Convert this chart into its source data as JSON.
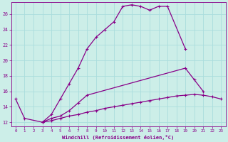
{
  "xlabel": "Windchill (Refroidissement éolien,°C)",
  "bg_color": "#cceee8",
  "line_color": "#880088",
  "grid_color": "#aadddd",
  "xlim": [
    -0.5,
    23.5
  ],
  "ylim": [
    11.5,
    27.5
  ],
  "xticks": [
    0,
    1,
    2,
    3,
    4,
    5,
    6,
    7,
    8,
    9,
    10,
    11,
    12,
    13,
    14,
    15,
    16,
    17,
    18,
    19,
    20,
    21,
    22,
    23
  ],
  "yticks": [
    12,
    14,
    16,
    18,
    20,
    22,
    24,
    26
  ],
  "series": [
    {
      "x": [
        0,
        1,
        3,
        4,
        5,
        6,
        7,
        8,
        9,
        10,
        11,
        12,
        13,
        14,
        15,
        16,
        17,
        19
      ],
      "y": [
        15.0,
        12.5,
        12.0,
        13.0,
        15.0,
        17.0,
        19.0,
        21.5,
        23.0,
        24.0,
        25.0,
        27.0,
        27.2,
        27.0,
        26.5,
        27.0,
        27.0,
        21.5
      ]
    },
    {
      "x": [
        3,
        4,
        5,
        6,
        7,
        8,
        19,
        20,
        21
      ],
      "y": [
        12.0,
        12.5,
        12.8,
        13.5,
        14.5,
        15.5,
        19.0,
        17.5,
        16.0
      ]
    },
    {
      "x": [
        3,
        4,
        5,
        6,
        7,
        8,
        9,
        10,
        11,
        12,
        13,
        14,
        15,
        16,
        17,
        18,
        19,
        20,
        21,
        22,
        23
      ],
      "y": [
        12.0,
        12.2,
        12.5,
        12.8,
        13.0,
        13.3,
        13.5,
        13.8,
        14.0,
        14.2,
        14.4,
        14.6,
        14.8,
        15.0,
        15.2,
        15.4,
        15.5,
        15.6,
        15.5,
        15.3,
        15.0
      ]
    }
  ]
}
